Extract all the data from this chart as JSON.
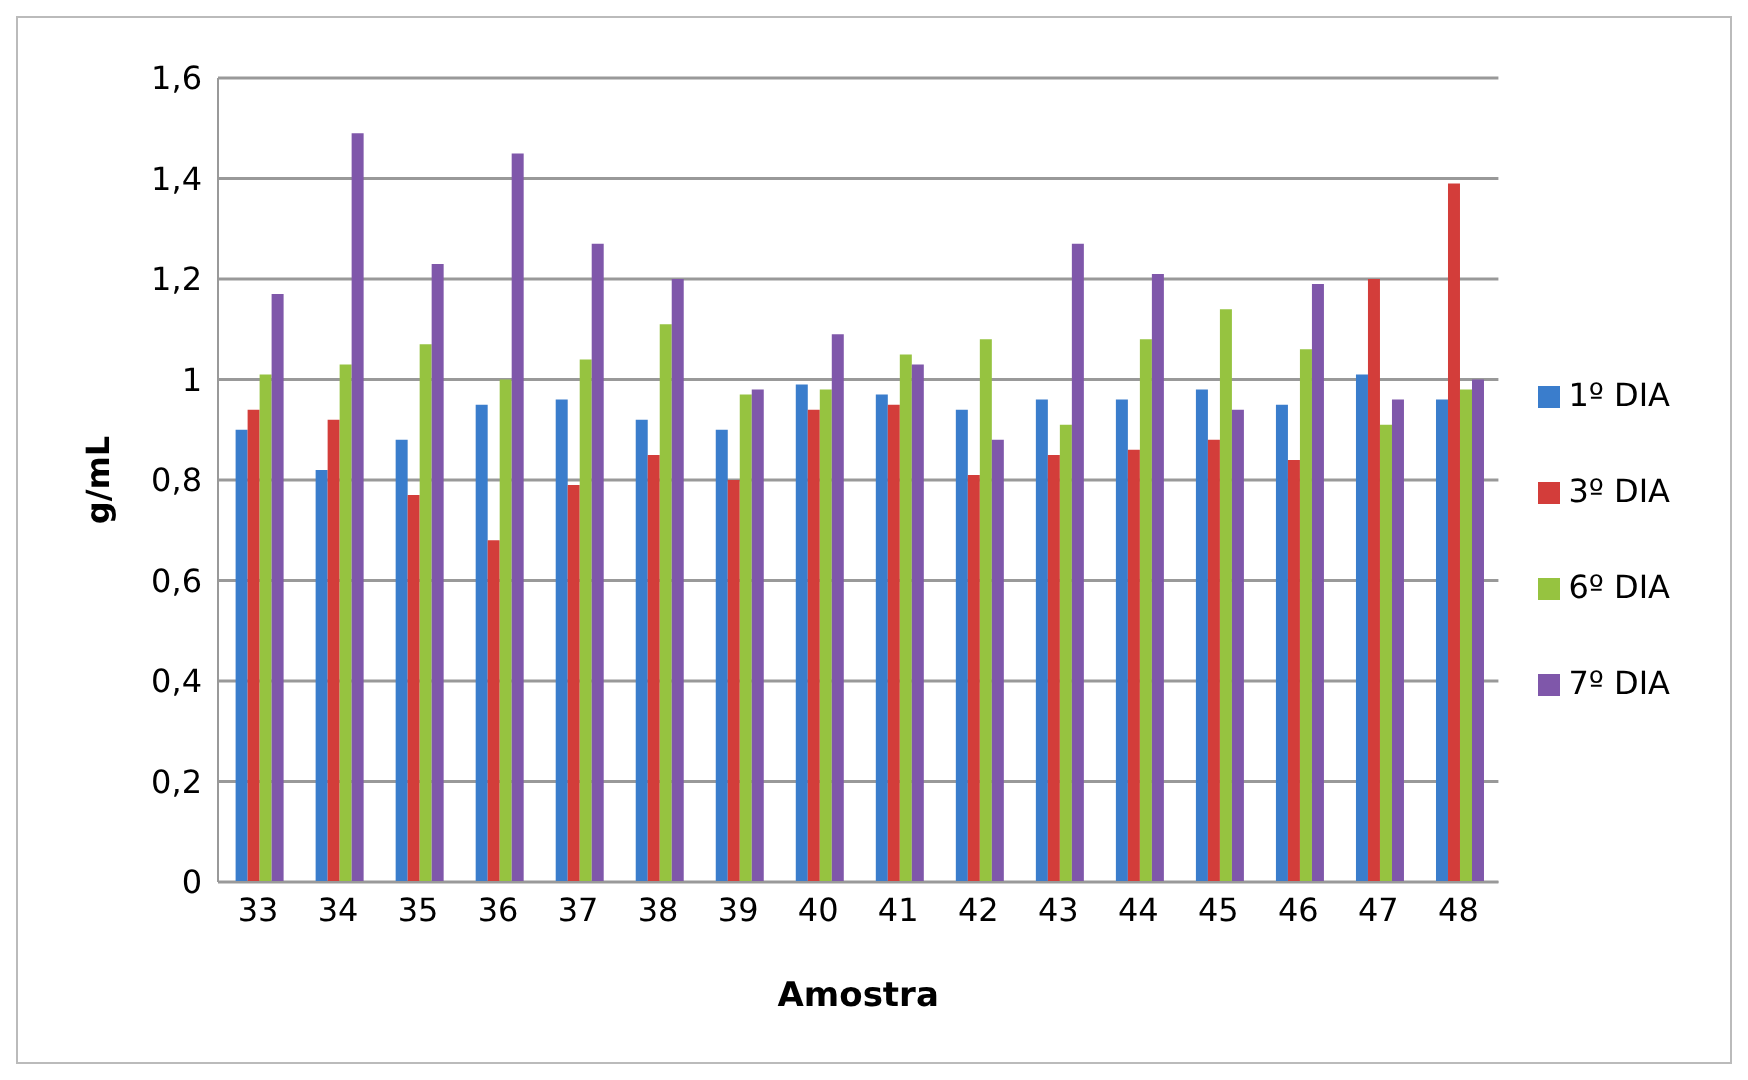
{
  "chart_data": {
    "type": "bar",
    "xlabel": "Amostra",
    "ylabel": "g/mL",
    "categories": [
      "33",
      "34",
      "35",
      "36",
      "37",
      "38",
      "39",
      "40",
      "41",
      "42",
      "43",
      "44",
      "45",
      "46",
      "47",
      "48"
    ],
    "series": [
      {
        "name": "1º DIA",
        "color": "#3a7dcc",
        "values": [
          0.9,
          0.82,
          0.88,
          0.95,
          0.96,
          0.92,
          0.9,
          0.99,
          0.97,
          0.94,
          0.96,
          0.96,
          0.98,
          0.95,
          1.01,
          0.96
        ]
      },
      {
        "name": "3º DIA",
        "color": "#d33d3a",
        "values": [
          0.94,
          0.92,
          0.77,
          0.68,
          0.79,
          0.85,
          0.8,
          0.94,
          0.95,
          0.81,
          0.85,
          0.86,
          0.88,
          0.84,
          1.2,
          1.39
        ]
      },
      {
        "name": "6º DIA",
        "color": "#96c340",
        "values": [
          1.01,
          1.03,
          1.07,
          1.0,
          1.04,
          1.11,
          0.97,
          0.98,
          1.05,
          1.08,
          0.91,
          1.08,
          1.14,
          1.06,
          0.91,
          0.98
        ]
      },
      {
        "name": "7º DIA",
        "color": "#7f57aa",
        "values": [
          1.17,
          1.49,
          1.23,
          1.45,
          1.27,
          1.2,
          0.98,
          1.09,
          1.03,
          0.88,
          1.27,
          1.21,
          0.94,
          1.19,
          0.96,
          1.0
        ]
      }
    ],
    "ylim": [
      0,
      1.6
    ],
    "yticks": [
      0,
      {
        "value": 0.2,
        "label": "0,2"
      },
      {
        "value": 0.4,
        "label": "0,4"
      },
      {
        "value": 0.6,
        "label": "0,6"
      },
      {
        "value": 0.8,
        "label": "0,8"
      },
      1,
      {
        "value": 1.2,
        "label": "1,2"
      },
      {
        "value": 1.4,
        "label": "1,4"
      },
      {
        "value": 1.6,
        "label": "1,6"
      }
    ],
    "grid": "y",
    "legend": "right"
  }
}
